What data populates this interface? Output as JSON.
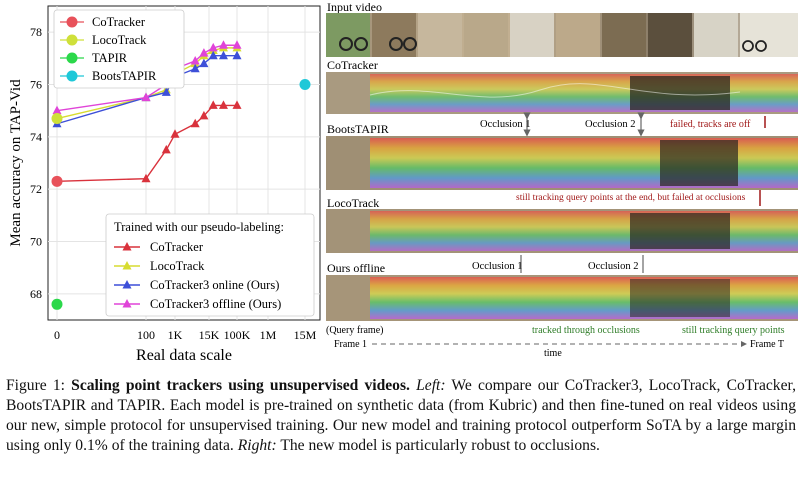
{
  "chart_data": {
    "type": "line",
    "xlabel": "Real data scale",
    "ylabel": "Mean accuracy on TAP-Vid",
    "ylim": [
      67,
      79
    ],
    "x_ticks": [
      "0",
      "100",
      "1K",
      "15K",
      "100K",
      "1M",
      "15M"
    ],
    "y_ticks": [
      "68",
      "70",
      "72",
      "74",
      "76",
      "78"
    ],
    "grid": true,
    "points_legend_location": "top-left",
    "lines_legend_title": "Trained with our pseudo-labeling:",
    "lines_legend_location": "bottom-right",
    "baselines": [
      {
        "name": "CoTracker",
        "color": "#e8515a",
        "x": "0",
        "y": 72.3
      },
      {
        "name": "LocoTrack",
        "color": "#cfe03a",
        "x": "0",
        "y": 74.7
      },
      {
        "name": "TAPIR",
        "color": "#2bd84a",
        "x": "0",
        "y": 67.6
      },
      {
        "name": "BootsTAPIR",
        "color": "#1ec8d8",
        "x": "15M",
        "y": 76.0
      }
    ],
    "series": [
      {
        "name": "CoTracker",
        "color": "#d9323c",
        "marker": "triangle",
        "x": [
          0,
          100,
          500,
          1000,
          5000,
          10000,
          20000,
          40000,
          100000
        ],
        "y": [
          72.3,
          72.4,
          73.5,
          74.1,
          74.5,
          74.8,
          75.2,
          75.2,
          75.2
        ]
      },
      {
        "name": "LocoTrack",
        "color": "#d7dc30",
        "marker": "triangle",
        "x": [
          0,
          100,
          500,
          1000,
          5000,
          10000,
          20000,
          40000,
          100000
        ],
        "y": [
          74.7,
          75.5,
          75.8,
          76.4,
          76.8,
          77.1,
          77.3,
          77.4,
          77.4
        ]
      },
      {
        "name": "CoTracker3 online (Ours)",
        "color": "#3d4fd8",
        "marker": "triangle",
        "x": [
          0,
          100,
          500,
          1000,
          5000,
          10000,
          20000,
          40000,
          100000
        ],
        "y": [
          74.5,
          75.5,
          75.7,
          76.3,
          76.6,
          76.8,
          77.1,
          77.1,
          77.1
        ]
      },
      {
        "name": "CoTracker3 offline (Ours)",
        "color": "#e044d8",
        "marker": "triangle",
        "x": [
          0,
          100,
          500,
          1000,
          5000,
          10000,
          20000,
          40000,
          100000
        ],
        "y": [
          75.0,
          75.5,
          76.0,
          76.6,
          76.9,
          77.2,
          77.4,
          77.5,
          77.5
        ]
      }
    ]
  },
  "right_panel": {
    "row_labels": [
      "Input video",
      "CoTracker",
      "BootsTAPIR",
      "LocoTrack",
      "Ours offline"
    ],
    "annotations": {
      "occlusion_1": "Occlusion 1",
      "occlusion_2": "Occlusion 2",
      "failed": "failed, tracks are off",
      "still_tracking_failed": "still tracking query points at the end, but failed at occlusions",
      "tracked_through": "tracked through occlusions",
      "still_tracking": "still tracking query points",
      "query_frame": "(Query frame)",
      "frame_1": "Frame 1",
      "time": "time",
      "frame_t": "Frame T"
    }
  },
  "caption": {
    "figure_label": "Figure 1:",
    "bold_title": "Scaling point trackers using unsupervised videos.",
    "left_label": "Left:",
    "text_1": "We compare our CoTracker3, LocoTrack, CoTracker, BootsTAPIR and TAPIR. Each model is pre-trained on synthetic data (from Kubric) and then fine-tuned on real videos using our new, simple protocol for unsupervised training. Our new model and training protocol outperform SoTA by a large margin using only 0.1% of the training data.",
    "right_label": "Right:",
    "text_2": "The new model is particularly robust to occlusions."
  }
}
